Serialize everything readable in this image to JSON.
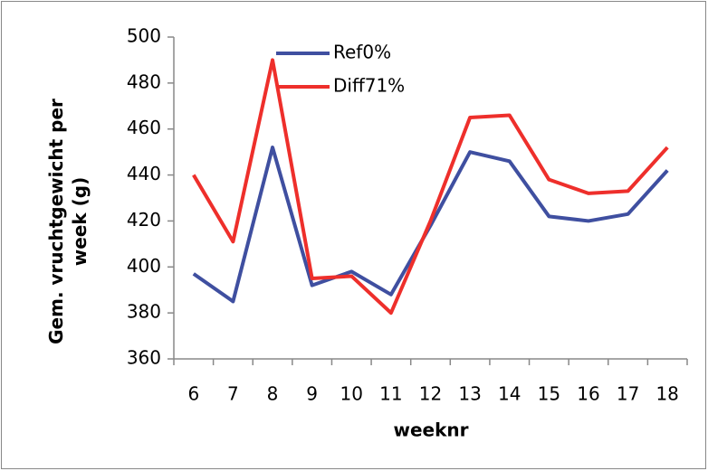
{
  "chart_data": {
    "type": "line",
    "x_label": "weeknr",
    "y_label": "Gem. vruchtgewicht per week (g)",
    "categories": [
      "6",
      "7",
      "8",
      "9",
      "10",
      "11",
      "12",
      "13",
      "14",
      "15",
      "16",
      "17",
      "18"
    ],
    "series": [
      {
        "name": "Ref0%",
        "color": "#3f4fa0",
        "values": [
          397,
          385,
          452,
          392,
          398,
          388,
          418,
          450,
          446,
          422,
          420,
          423,
          442
        ]
      },
      {
        "name": "Diff71%",
        "color": "#ee2f2b",
        "values": [
          440,
          411,
          490,
          395,
          396,
          380,
          420,
          465,
          466,
          438,
          432,
          433,
          452
        ]
      }
    ],
    "ylim": [
      360,
      500
    ],
    "yticks": [
      360,
      380,
      400,
      420,
      440,
      460,
      480,
      500
    ],
    "grid": false,
    "legend": "top-left"
  }
}
